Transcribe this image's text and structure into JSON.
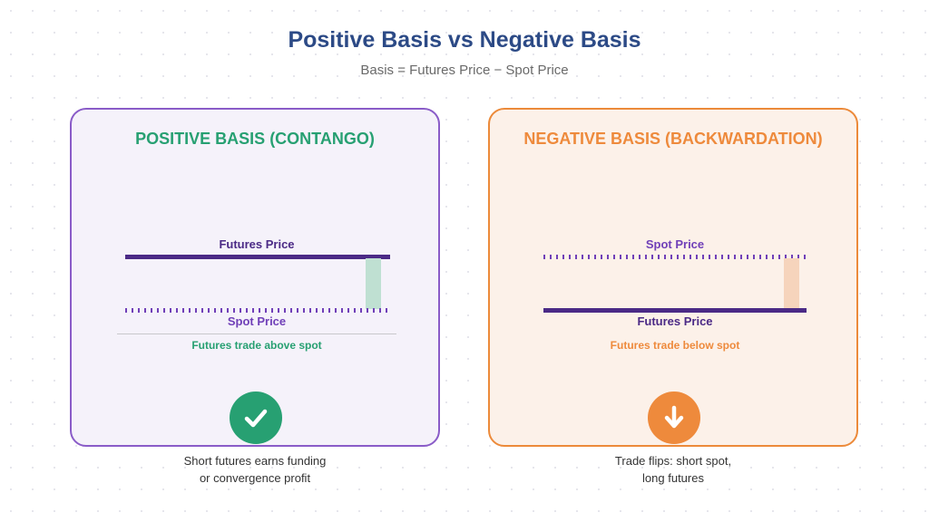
{
  "header": {
    "title": "Positive Basis vs Negative Basis",
    "subtitle": "Basis = Futures Price − Spot Price"
  },
  "positive": {
    "heading": "POSITIVE BASIS (CONTANGO)",
    "top_label": "Futures Price",
    "bottom_label": "Spot Price",
    "caption": "Futures trade above spot",
    "note_line1": "Short futures earns funding",
    "note_line2": "or convergence profit",
    "accent": "#27a072",
    "border": "#8a5cc8",
    "icon": "checkmark-icon"
  },
  "negative": {
    "heading": "NEGATIVE BASIS (BACKWARDATION)",
    "top_label": "Spot Price",
    "bottom_label": "Futures Price",
    "caption": "Futures trade below spot",
    "note_line1": "Trade flips: short spot,",
    "note_line2": "long futures",
    "accent": "#ee8a3c",
    "border": "#ec8a3a",
    "icon": "down-arrow-icon"
  }
}
